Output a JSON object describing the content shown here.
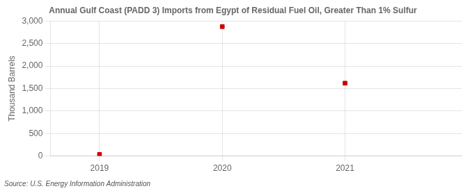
{
  "chart_data": {
    "type": "scatter",
    "title": "Annual Gulf Coast (PADD 3) Imports from Egypt of Residual Fuel Oil, Greater Than 1% Sulfur",
    "ylabel": "Thousand Barrels",
    "annotation": "Source: U.S. Energy Information Administration",
    "x": [
      2019,
      2020,
      2021
    ],
    "values": [
      35,
      2878,
      1620
    ],
    "color": "#cc0000",
    "marker": "square",
    "xlim": [
      2018.6,
      2021.95
    ],
    "xticks": [
      2019,
      2020,
      2021
    ],
    "ylim": [
      0,
      3000
    ],
    "yticks": [
      0,
      500,
      {
        "value": 1000,
        "label": "1,000"
      },
      {
        "value": 1500,
        "label": "1,500"
      },
      {
        "value": 2000,
        "label": "2,000"
      },
      {
        "value": 2500,
        "label": "2,500"
      },
      {
        "value": 3000,
        "label": "3,000"
      }
    ],
    "grid": true
  }
}
